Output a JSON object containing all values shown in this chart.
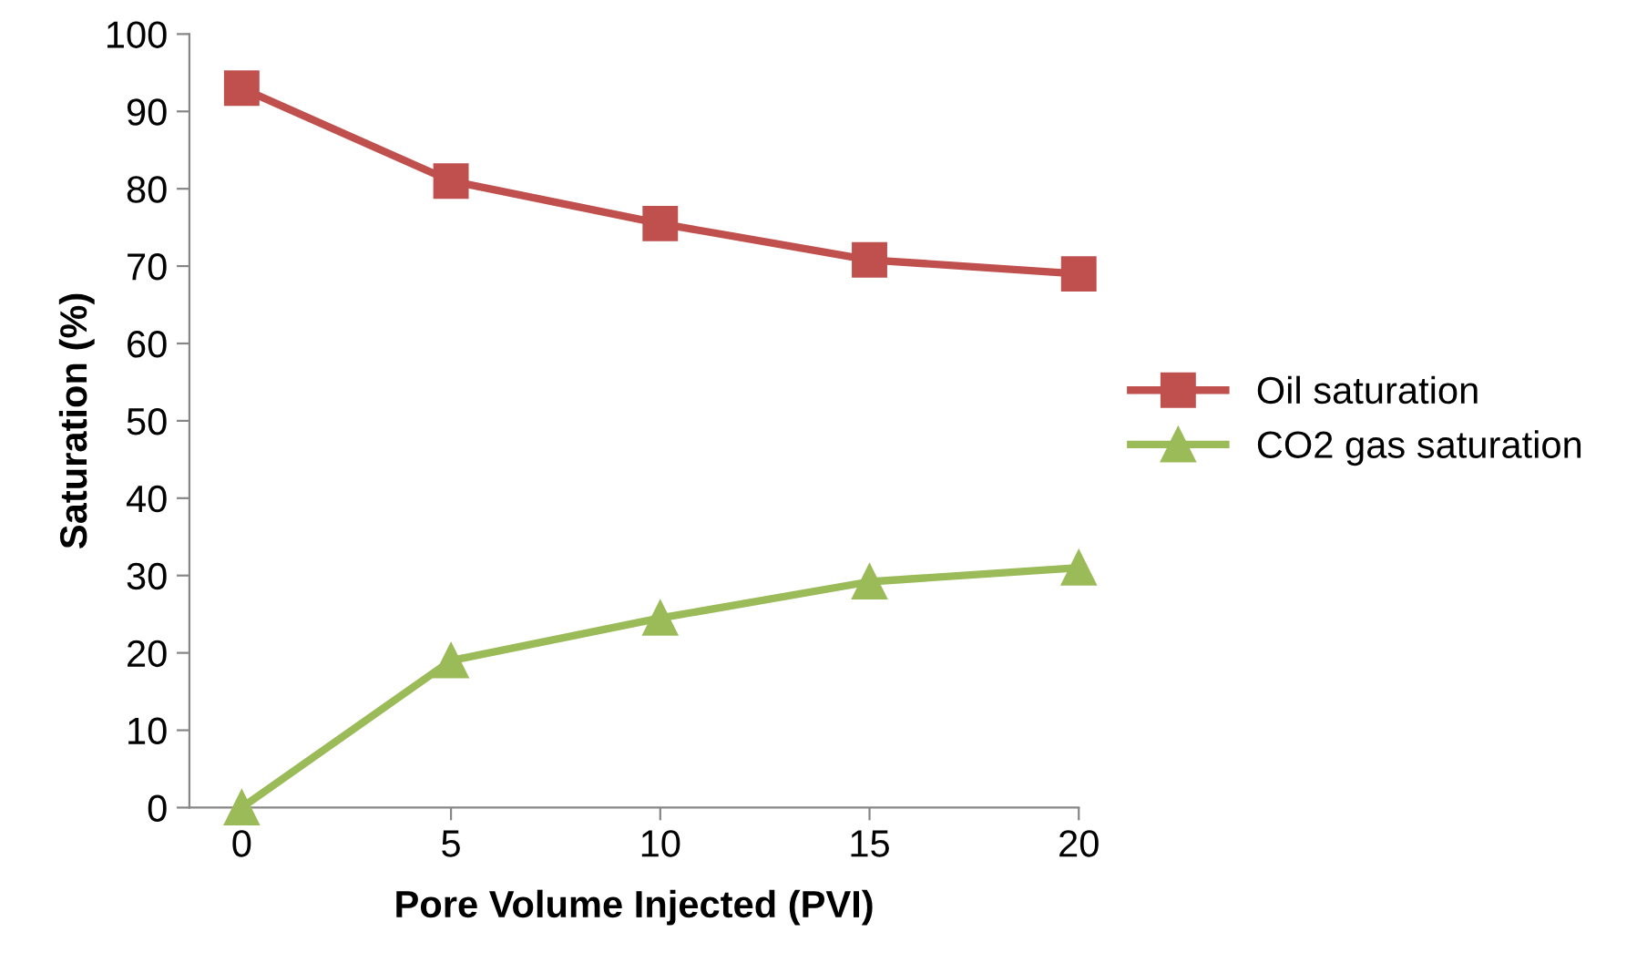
{
  "chart_data": {
    "type": "line",
    "xlabel": "Pore Volume Injected (PVI)",
    "ylabel": "Saturation (%)",
    "categories": [
      "0",
      "5",
      "10",
      "15",
      "20"
    ],
    "series": [
      {
        "name": "Oil saturation",
        "color": "#c0504d",
        "marker": "square",
        "values": [
          93,
          81,
          75.5,
          70.8,
          69
        ]
      },
      {
        "name": "CO2 gas saturation",
        "color": "#9bbb59",
        "marker": "triangle",
        "values": [
          0,
          19,
          24.5,
          29.2,
          31
        ]
      }
    ],
    "ylim": [
      0,
      100
    ],
    "yticks": [
      0,
      10,
      20,
      30,
      40,
      50,
      60,
      70,
      80,
      90,
      100
    ],
    "grid": false,
    "legend": "right"
  }
}
